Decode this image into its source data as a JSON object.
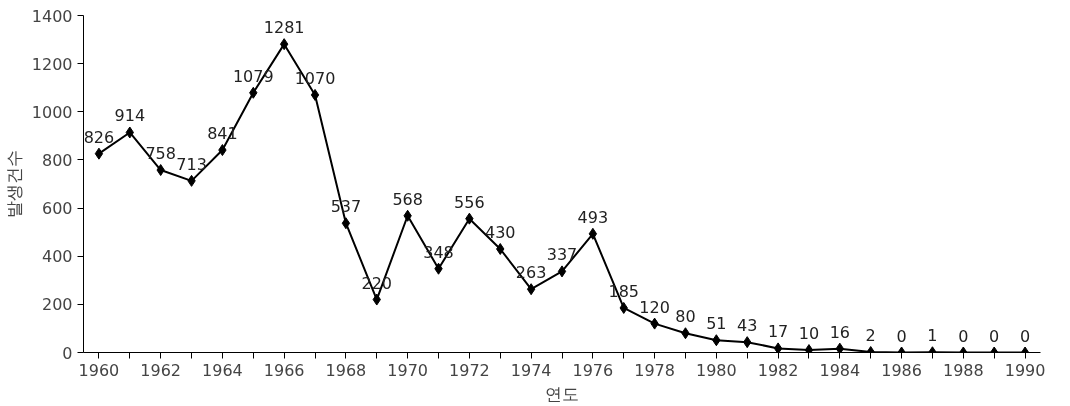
{
  "chart_data": {
    "type": "line",
    "xlabel": "연도",
    "ylabel": "발생건수",
    "x": [
      1960,
      1961,
      1962,
      1963,
      1964,
      1965,
      1966,
      1967,
      1968,
      1969,
      1970,
      1971,
      1972,
      1973,
      1974,
      1975,
      1976,
      1977,
      1978,
      1979,
      1980,
      1981,
      1982,
      1983,
      1984,
      1985,
      1986,
      1987,
      1988,
      1989,
      1990
    ],
    "series": [
      {
        "color": "#000000",
        "values": [
          826,
          914,
          758,
          713,
          841,
          1079,
          1281,
          1070,
          537,
          220,
          568,
          348,
          556,
          430,
          263,
          337,
          493,
          185,
          120,
          80,
          51,
          43,
          17,
          10,
          16,
          2,
          0,
          1,
          0,
          0,
          0
        ]
      }
    ],
    "xlim": [
      1959.5,
      1990.5
    ],
    "xticks": [
      1960,
      {
        "value": 1961,
        "label": null
      },
      1962,
      {
        "value": 1963,
        "label": null
      },
      1964,
      {
        "value": 1965,
        "label": null
      },
      1966,
      {
        "value": 1967,
        "label": null
      },
      1968,
      {
        "value": 1969,
        "label": null
      },
      1970,
      {
        "value": 1971,
        "label": null
      },
      1972,
      {
        "value": 1973,
        "label": null
      },
      1974,
      {
        "value": 1975,
        "label": null
      },
      1976,
      {
        "value": 1977,
        "label": null
      },
      1978,
      {
        "value": 1979,
        "label": null
      },
      1980,
      {
        "value": 1981,
        "label": null
      },
      1982,
      {
        "value": 1983,
        "label": null
      },
      1984,
      {
        "value": 1985,
        "label": null
      },
      1986,
      {
        "value": 1987,
        "label": null
      },
      1988,
      {
        "value": 1989,
        "label": null
      },
      1990
    ],
    "ylim": [
      0,
      1400
    ],
    "yticks": [
      0,
      200,
      400,
      600,
      800,
      1000,
      1200,
      1400
    ],
    "marker": "diamond",
    "line_style": "solid",
    "data_labels": true,
    "grid": false
  }
}
